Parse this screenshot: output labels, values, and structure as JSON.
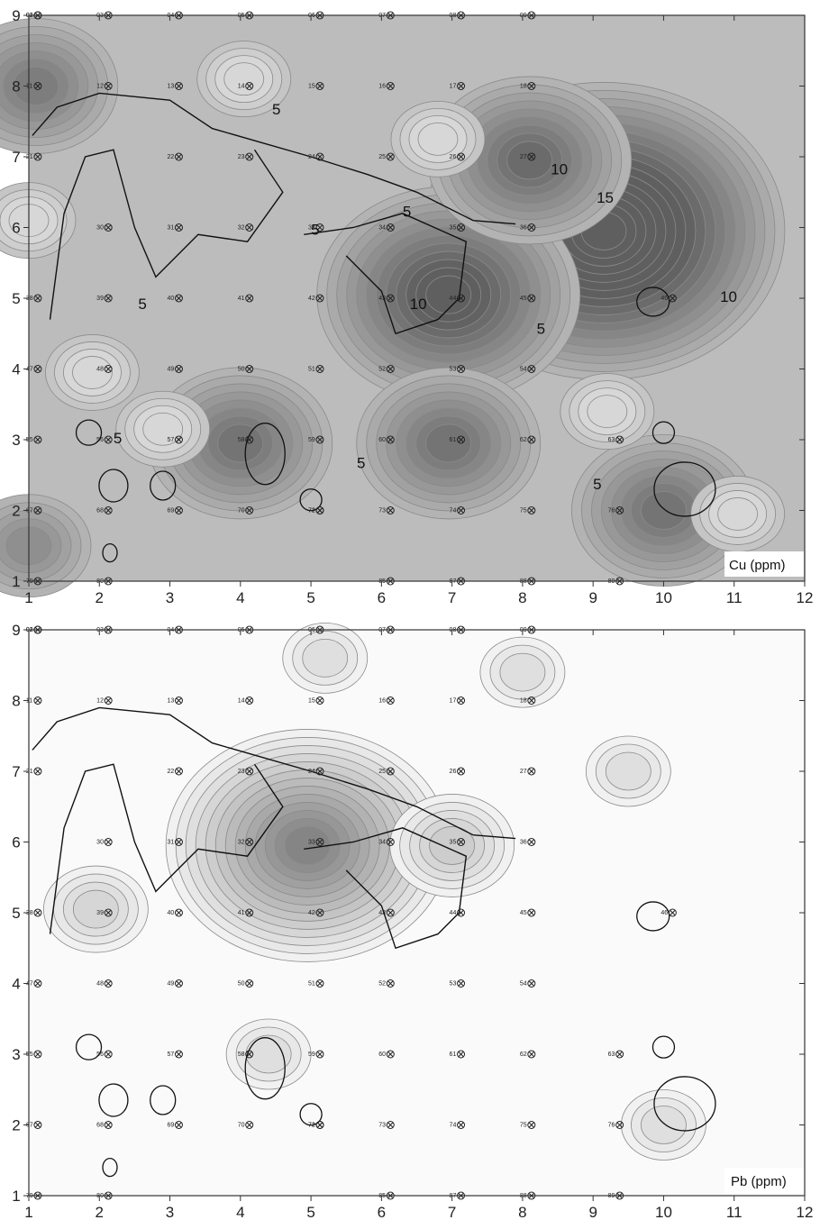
{
  "panels": [
    {
      "id": "cu",
      "element_label": "Cu (ppm)",
      "x_ticks": [
        "1",
        "2",
        "3",
        "4",
        "5",
        "6",
        "7",
        "8",
        "9",
        "10",
        "11",
        "12"
      ],
      "y_ticks": [
        "1",
        "2",
        "3",
        "4",
        "5",
        "6",
        "7",
        "8",
        "9"
      ],
      "contour_labels": [
        {
          "text": "5",
          "x": 4.45,
          "y": 7.6
        },
        {
          "text": "5",
          "x": 5.0,
          "y": 5.9
        },
        {
          "text": "5",
          "x": 6.3,
          "y": 6.15
        },
        {
          "text": "10",
          "x": 8.4,
          "y": 6.75
        },
        {
          "text": "15",
          "x": 9.05,
          "y": 6.35
        },
        {
          "text": "10",
          "x": 10.8,
          "y": 4.95
        },
        {
          "text": "10",
          "x": 6.4,
          "y": 4.85
        },
        {
          "text": "5",
          "x": 2.55,
          "y": 4.85
        },
        {
          "text": "5",
          "x": 8.2,
          "y": 4.5
        },
        {
          "text": "5",
          "x": 2.2,
          "y": 2.95
        },
        {
          "text": "5",
          "x": 5.65,
          "y": 2.6
        },
        {
          "text": "5",
          "x": 9.0,
          "y": 2.3
        }
      ],
      "highs": [
        {
          "x": 9.15,
          "y": 5.95,
          "level": 17
        },
        {
          "x": 6.95,
          "y": 5.05,
          "level": 12
        },
        {
          "x": 8.1,
          "y": 6.95,
          "level": 9
        },
        {
          "x": 1.1,
          "y": 8.0,
          "level": 7
        },
        {
          "x": 4.0,
          "y": 2.95,
          "level": 8
        },
        {
          "x": 6.95,
          "y": 2.95,
          "level": 8
        },
        {
          "x": 10.0,
          "y": 2.0,
          "level": 8
        },
        {
          "x": 1.0,
          "y": 1.5,
          "level": 5
        }
      ],
      "lows": [
        {
          "x": 6.8,
          "y": 7.25,
          "level": 0
        },
        {
          "x": 1.9,
          "y": 3.95,
          "level": 0
        },
        {
          "x": 2.9,
          "y": 3.15,
          "level": 0
        },
        {
          "x": 9.2,
          "y": 3.4,
          "level": 0
        },
        {
          "x": 4.05,
          "y": 8.1,
          "level": 1
        },
        {
          "x": 1.0,
          "y": 6.1,
          "level": 1
        },
        {
          "x": 11.05,
          "y": 1.95,
          "level": 2
        }
      ]
    },
    {
      "id": "pb",
      "element_label": "Pb (ppm)",
      "x_ticks": [
        "1",
        "2",
        "3",
        "4",
        "5",
        "6",
        "7",
        "8",
        "9",
        "10",
        "11",
        "12"
      ],
      "y_ticks": [
        "1",
        "2",
        "3",
        "4",
        "5",
        "6",
        "7",
        "8",
        "9"
      ],
      "contour_labels": [],
      "highs": [
        {
          "x": 4.95,
          "y": 5.95,
          "level": 13
        },
        {
          "x": 7.0,
          "y": 5.95,
          "level": 5
        },
        {
          "x": 1.95,
          "y": 5.05,
          "level": 4
        },
        {
          "x": 4.4,
          "y": 3.0,
          "level": 3
        },
        {
          "x": 10.0,
          "y": 2.0,
          "level": 3
        },
        {
          "x": 5.2,
          "y": 8.6,
          "level": 2
        },
        {
          "x": 8.0,
          "y": 8.4,
          "level": 2
        },
        {
          "x": 9.5,
          "y": 7.0,
          "level": 2
        }
      ],
      "lows": []
    }
  ],
  "sample_sites": [
    {
      "id": "01",
      "x": 1.05,
      "y": 9.0
    },
    {
      "id": "02",
      "x": 1.05,
      "y": 9.0
    },
    {
      "id": "03",
      "x": 2.05,
      "y": 9.0
    },
    {
      "id": "04",
      "x": 3.05,
      "y": 9.0
    },
    {
      "id": "05",
      "x": 4.05,
      "y": 9.0
    },
    {
      "id": "06",
      "x": 5.05,
      "y": 9.0
    },
    {
      "id": "07",
      "x": 6.05,
      "y": 9.0
    },
    {
      "id": "08",
      "x": 7.05,
      "y": 9.0
    },
    {
      "id": "09",
      "x": 8.05,
      "y": 9.0
    },
    {
      "id": "11",
      "x": 1.05,
      "y": 8.0
    },
    {
      "id": "12",
      "x": 2.05,
      "y": 8.0
    },
    {
      "id": "13",
      "x": 3.05,
      "y": 8.0
    },
    {
      "id": "14",
      "x": 4.05,
      "y": 8.0
    },
    {
      "id": "15",
      "x": 5.05,
      "y": 8.0
    },
    {
      "id": "16",
      "x": 6.05,
      "y": 8.0
    },
    {
      "id": "17",
      "x": 7.05,
      "y": 8.0
    },
    {
      "id": "18",
      "x": 8.05,
      "y": 8.0
    },
    {
      "id": "21",
      "x": 1.05,
      "y": 7.0
    },
    {
      "id": "22",
      "x": 3.05,
      "y": 7.0
    },
    {
      "id": "23",
      "x": 4.05,
      "y": 7.0
    },
    {
      "id": "24",
      "x": 5.05,
      "y": 7.0
    },
    {
      "id": "25",
      "x": 6.05,
      "y": 7.0
    },
    {
      "id": "26",
      "x": 7.05,
      "y": 7.0
    },
    {
      "id": "27",
      "x": 8.05,
      "y": 7.0
    },
    {
      "id": "30",
      "x": 2.05,
      "y": 6.0
    },
    {
      "id": "31",
      "x": 3.05,
      "y": 6.0
    },
    {
      "id": "32",
      "x": 4.05,
      "y": 6.0
    },
    {
      "id": "33",
      "x": 5.05,
      "y": 6.0
    },
    {
      "id": "34",
      "x": 6.05,
      "y": 6.0
    },
    {
      "id": "35",
      "x": 7.05,
      "y": 6.0
    },
    {
      "id": "36",
      "x": 8.05,
      "y": 6.0
    },
    {
      "id": "38",
      "x": 1.05,
      "y": 5.0
    },
    {
      "id": "39",
      "x": 2.05,
      "y": 5.0
    },
    {
      "id": "40",
      "x": 3.05,
      "y": 5.0
    },
    {
      "id": "41",
      "x": 4.05,
      "y": 5.0
    },
    {
      "id": "42",
      "x": 5.05,
      "y": 5.0
    },
    {
      "id": "43",
      "x": 6.05,
      "y": 5.0
    },
    {
      "id": "44",
      "x": 7.05,
      "y": 5.0
    },
    {
      "id": "45",
      "x": 8.05,
      "y": 5.0
    },
    {
      "id": "46",
      "x": 10.05,
      "y": 5.0
    },
    {
      "id": "47",
      "x": 1.05,
      "y": 4.0
    },
    {
      "id": "48",
      "x": 2.05,
      "y": 4.0
    },
    {
      "id": "49",
      "x": 3.05,
      "y": 4.0
    },
    {
      "id": "50",
      "x": 4.05,
      "y": 4.0
    },
    {
      "id": "51",
      "x": 5.05,
      "y": 4.0
    },
    {
      "id": "52",
      "x": 6.05,
      "y": 4.0
    },
    {
      "id": "53",
      "x": 7.05,
      "y": 4.0
    },
    {
      "id": "54",
      "x": 8.05,
      "y": 4.0
    },
    {
      "id": "55",
      "x": 1.05,
      "y": 3.0
    },
    {
      "id": "56",
      "x": 2.05,
      "y": 3.0
    },
    {
      "id": "57",
      "x": 3.05,
      "y": 3.0
    },
    {
      "id": "58",
      "x": 4.05,
      "y": 3.0
    },
    {
      "id": "59",
      "x": 5.05,
      "y": 3.0
    },
    {
      "id": "60",
      "x": 6.05,
      "y": 3.0
    },
    {
      "id": "61",
      "x": 7.05,
      "y": 3.0
    },
    {
      "id": "62",
      "x": 8.05,
      "y": 3.0
    },
    {
      "id": "63",
      "x": 9.3,
      "y": 3.0
    },
    {
      "id": "67",
      "x": 1.05,
      "y": 2.0
    },
    {
      "id": "68",
      "x": 2.05,
      "y": 2.0
    },
    {
      "id": "69",
      "x": 3.05,
      "y": 2.0
    },
    {
      "id": "70",
      "x": 4.05,
      "y": 2.0
    },
    {
      "id": "71",
      "x": 5.05,
      "y": 2.0
    },
    {
      "id": "72",
      "x": 5.05,
      "y": 2.0
    },
    {
      "id": "73",
      "x": 6.05,
      "y": 2.0
    },
    {
      "id": "74",
      "x": 7.05,
      "y": 2.0
    },
    {
      "id": "75",
      "x": 8.05,
      "y": 2.0
    },
    {
      "id": "76",
      "x": 9.3,
      "y": 2.0
    },
    {
      "id": "79",
      "x": 1.05,
      "y": 1.0
    },
    {
      "id": "80",
      "x": 2.05,
      "y": 1.0
    },
    {
      "id": "85",
      "x": 6.05,
      "y": 1.0
    },
    {
      "id": "87",
      "x": 7.05,
      "y": 1.0
    },
    {
      "id": "88",
      "x": 8.05,
      "y": 1.0
    },
    {
      "id": "89",
      "x": 9.3,
      "y": 1.0
    }
  ],
  "style": {
    "contour_line": "#8a8a8a",
    "outline": "#111111",
    "axis": "#333333"
  }
}
